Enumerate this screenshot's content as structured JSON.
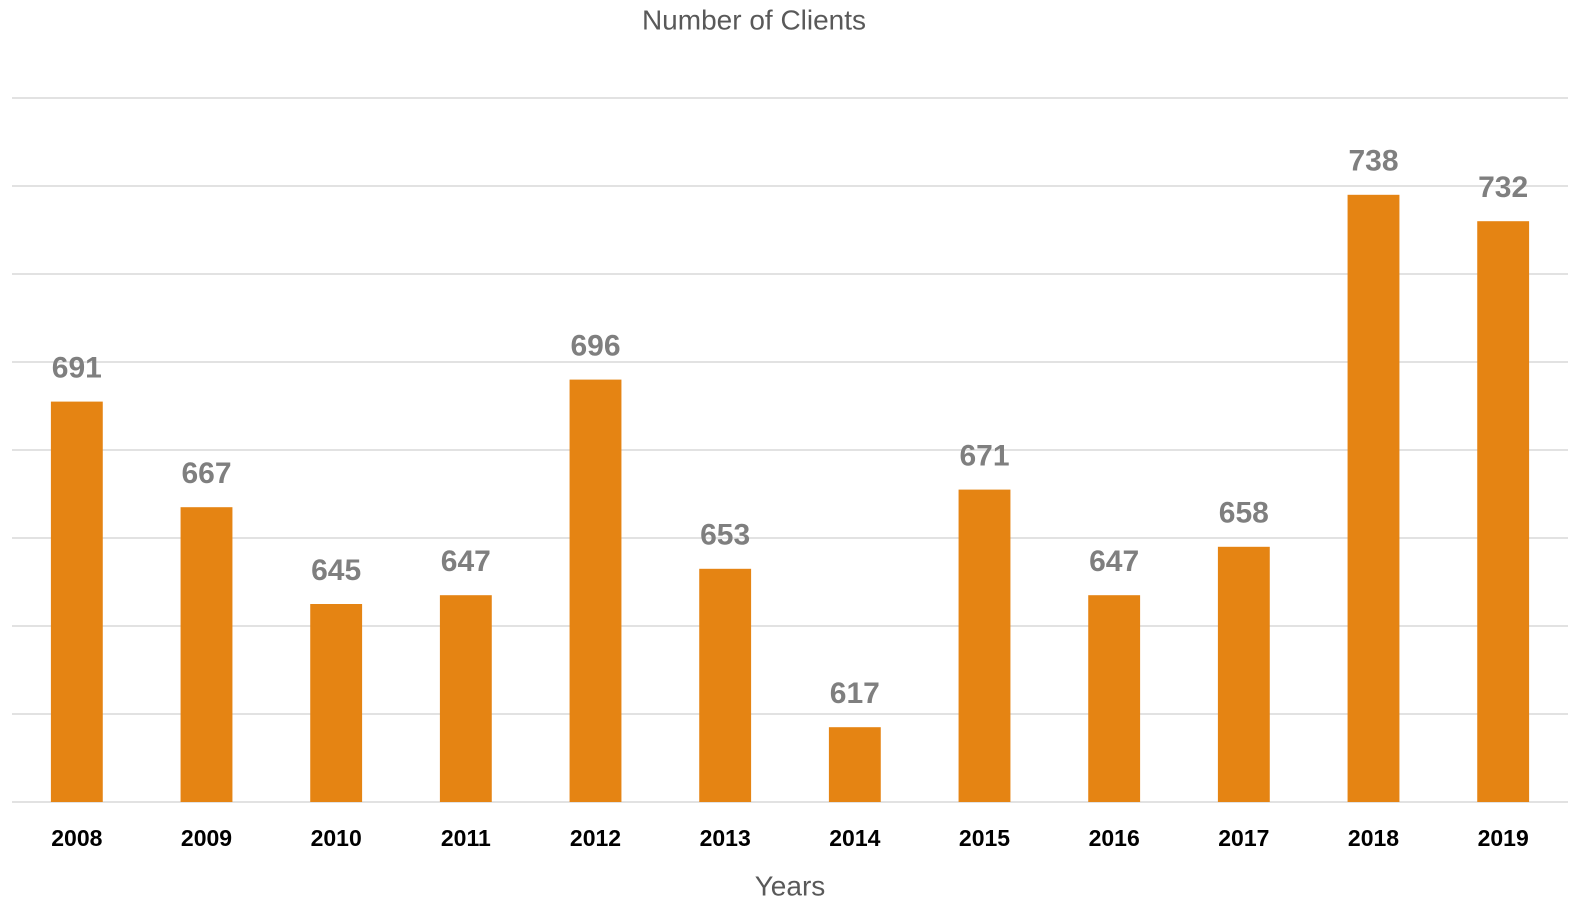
{
  "chart_data": {
    "type": "bar",
    "title": "Number of Clients",
    "x_label": "Years",
    "categories": [
      "2008",
      "2009",
      "2010",
      "2011",
      "2012",
      "2013",
      "2014",
      "2015",
      "2016",
      "2017",
      "2018",
      "2019"
    ],
    "values": [
      691,
      667,
      645,
      647,
      696,
      653,
      617,
      671,
      647,
      658,
      738,
      732
    ],
    "color": "#e58413",
    "ylim": [
      600,
      760
    ],
    "yticks": [
      600,
      620,
      640,
      660,
      680,
      700,
      720,
      740,
      760
    ],
    "grid": true
  }
}
